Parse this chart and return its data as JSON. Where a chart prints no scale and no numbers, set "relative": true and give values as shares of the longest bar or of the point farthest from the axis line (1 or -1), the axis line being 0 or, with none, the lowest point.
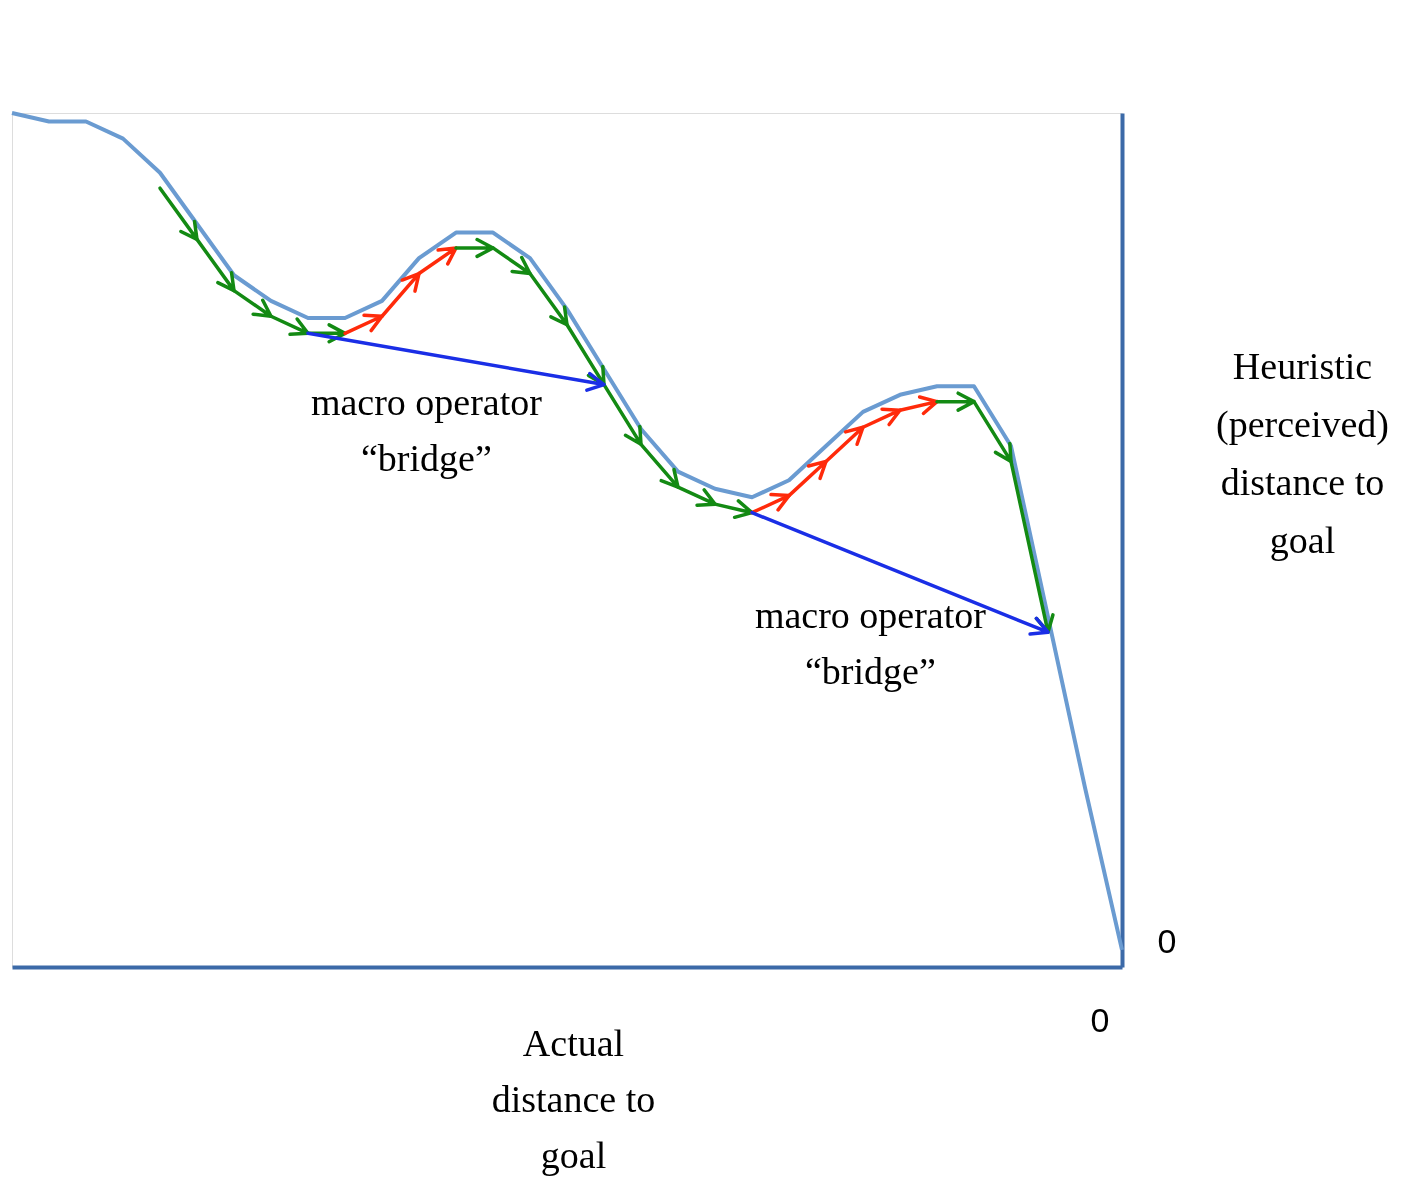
{
  "chart_data": {
    "type": "line",
    "relative": true,
    "xlabel": "Actual distance to goal",
    "ylabel": "Heuristic (perceived) distance to goal",
    "categories": [
      null,
      null,
      null,
      null,
      null,
      null,
      null,
      null,
      null,
      null,
      null,
      null,
      null,
      null,
      null,
      null,
      null,
      null,
      null,
      null,
      null,
      null,
      null,
      null,
      null,
      null,
      null,
      null,
      null,
      null,
      null
    ],
    "series": [
      {
        "color": "#6a9bd1",
        "values": [
          1.0,
          0.99,
          0.99,
          0.97,
          0.93,
          0.87,
          0.81,
          0.78,
          0.76,
          0.76,
          0.78,
          0.83,
          0.86,
          0.86,
          0.83,
          0.77,
          0.7,
          0.63,
          0.58,
          0.56,
          0.55,
          0.57,
          0.61,
          0.65,
          0.67,
          0.68,
          0.68,
          0.61,
          0.41,
          0.21,
          0.02
        ]
      }
    ],
    "annotations": [
      "macro operator “bridge”",
      "macro operator “bridge”",
      "0",
      "0"
    ],
    "grid": false,
    "marker": "none",
    "line_style": "solid"
  }
}
